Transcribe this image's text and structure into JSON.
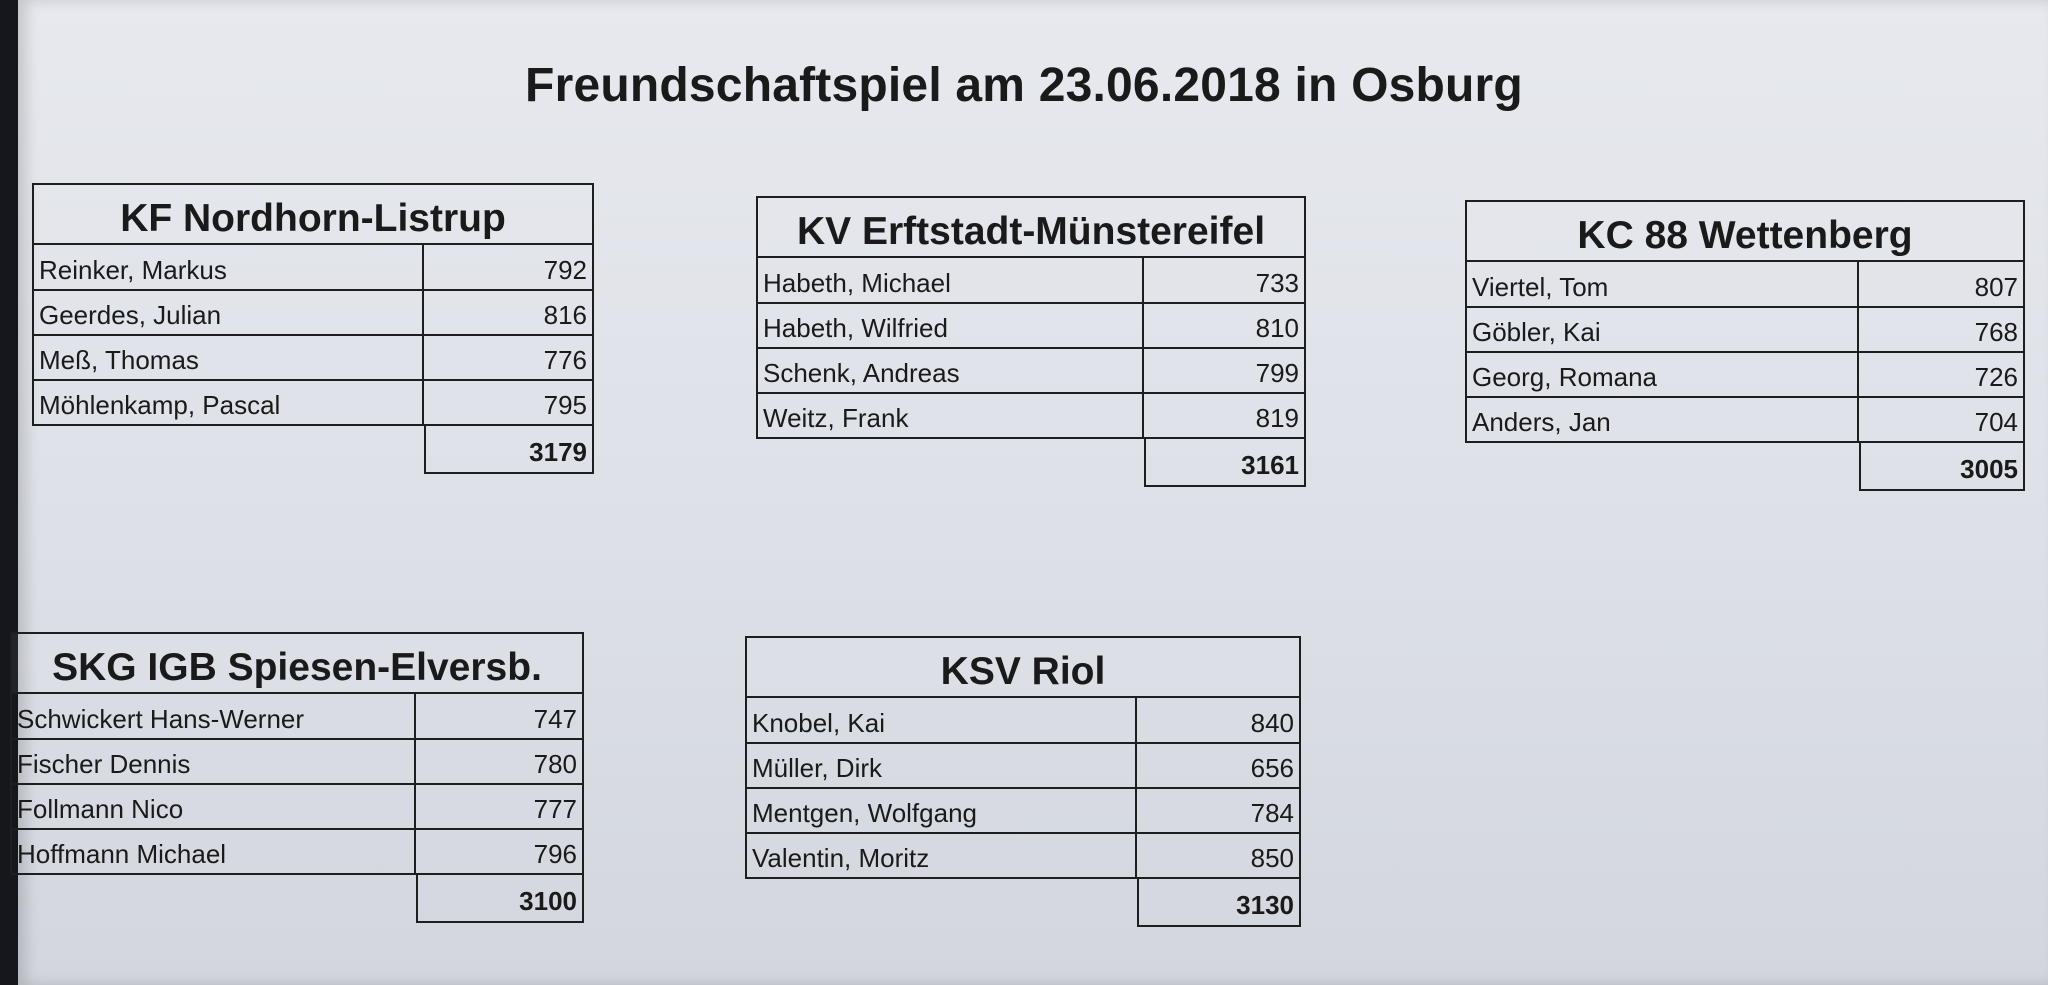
{
  "title": "Freundschaftspiel am 23.06.2018 in Osburg",
  "teams": [
    {
      "name": "KF Nordhorn-Listrup",
      "players": [
        {
          "name": "Reinker, Markus",
          "score": "792"
        },
        {
          "name": "Geerdes, Julian",
          "score": "816"
        },
        {
          "name": "Meß, Thomas",
          "score": "776"
        },
        {
          "name": "Möhlenkamp, Pascal",
          "score": "795"
        }
      ],
      "total": "3179"
    },
    {
      "name": "KV Erftstadt-Münstereifel",
      "players": [
        {
          "name": "Habeth, Michael",
          "score": "733"
        },
        {
          "name": "Habeth, Wilfried",
          "score": "810"
        },
        {
          "name": "Schenk, Andreas",
          "score": "799"
        },
        {
          "name": "Weitz, Frank",
          "score": "819"
        }
      ],
      "total": "3161"
    },
    {
      "name": "KC 88 Wettenberg",
      "players": [
        {
          "name": "Viertel, Tom",
          "score": "807"
        },
        {
          "name": "Göbler, Kai",
          "score": "768"
        },
        {
          "name": "Georg, Romana",
          "score": "726"
        },
        {
          "name": "Anders, Jan",
          "score": "704"
        }
      ],
      "total": "3005"
    },
    {
      "name": "SKG IGB Spiesen-Elversb.",
      "players": [
        {
          "name": "Schwickert Hans-Werner",
          "score": "747"
        },
        {
          "name": "Fischer Dennis",
          "score": "780"
        },
        {
          "name": "Follmann Nico",
          "score": "777"
        },
        {
          "name": "Hoffmann Michael",
          "score": "796"
        }
      ],
      "total": "3100"
    },
    {
      "name": "KSV Riol",
      "players": [
        {
          "name": "Knobel, Kai",
          "score": "840"
        },
        {
          "name": "Müller, Dirk",
          "score": "656"
        },
        {
          "name": "Mentgen, Wolfgang",
          "score": "784"
        },
        {
          "name": "Valentin, Moritz",
          "score": "850"
        }
      ],
      "total": "3130"
    }
  ]
}
